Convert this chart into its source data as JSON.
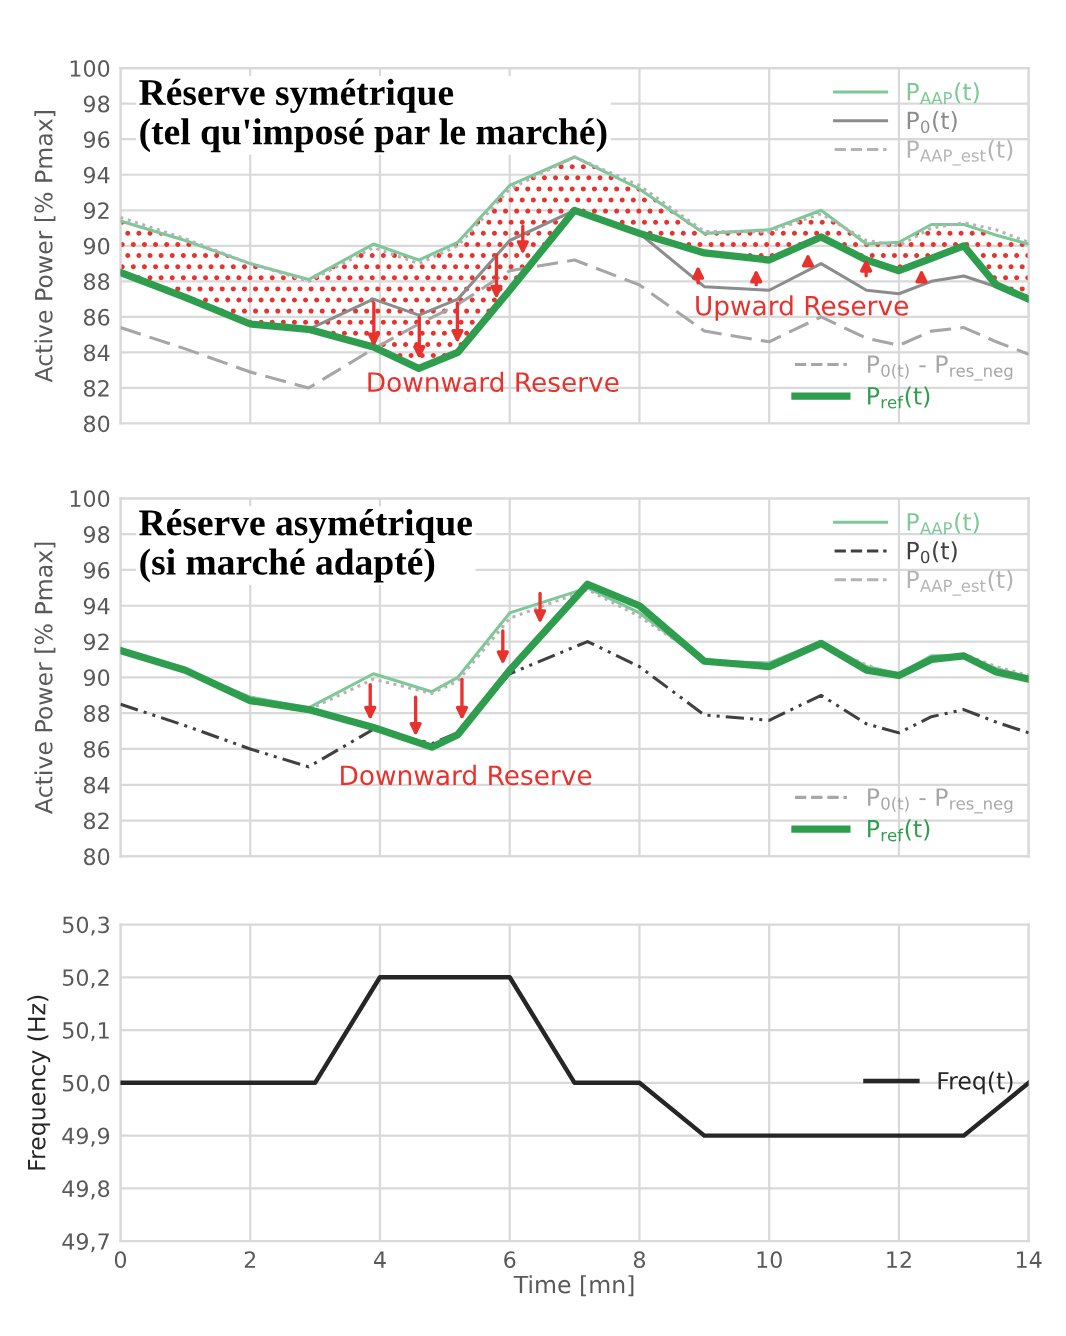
{
  "chart_data": [
    {
      "type": "line",
      "title": "Réserve symétrique\n(tel qu'imposé par le marché)",
      "ylabel": "Active Power [% Pmax]",
      "xlim": [
        0,
        14
      ],
      "xticks": [
        0,
        2,
        4,
        6,
        8,
        10,
        12,
        14
      ],
      "ylim": [
        80,
        100
      ],
      "yticks": [
        80,
        82,
        84,
        86,
        88,
        90,
        92,
        94,
        96,
        98,
        100
      ],
      "grid": true,
      "tick_labels": "y",
      "legend": "right",
      "x": [
        0,
        1,
        2,
        2.9,
        3.9,
        4.6,
        5.2,
        6,
        7,
        8,
        9,
        10,
        10.8,
        11.5,
        12,
        12.5,
        13,
        13.5,
        14
      ],
      "series": [
        {
          "name": "P$_{AAP}$(t)",
          "color": "#7cc896",
          "line_style": "solid",
          "values": [
            91.4,
            90.3,
            89.0,
            88.1,
            90.1,
            89.2,
            90.2,
            93.4,
            95.0,
            93.2,
            90.7,
            90.9,
            92.0,
            90.1,
            90.2,
            91.2,
            91.2,
            90.6,
            90.1
          ]
        },
        {
          "name": "P$_{0}$(t)",
          "color": "#8c8c8c",
          "line_style": "solid",
          "values": [
            88.5,
            87.1,
            85.6,
            85.3,
            87.0,
            86.1,
            87.0,
            90.3,
            92.0,
            90.7,
            87.7,
            87.5,
            89.0,
            87.5,
            87.3,
            88.0,
            88.3,
            87.7,
            87.0
          ]
        },
        {
          "name": "P$_{AAP_est}$(t)",
          "color": "#b4b4b4",
          "line_style": "dotted",
          "values": [
            91.6,
            90.4,
            89.0,
            88.0,
            89.9,
            89.0,
            90.0,
            93.2,
            95.0,
            93.4,
            90.8,
            90.8,
            91.8,
            90.3,
            90.0,
            91.0,
            91.3,
            90.9,
            90.2
          ]
        },
        {
          "name": "P$_{0(t)}$ - P$_{res_neg}$",
          "color": "#a6a6a6",
          "line_style": "dashed",
          "values": [
            85.4,
            84.2,
            82.9,
            82.0,
            84.2,
            85.6,
            86.7,
            88.6,
            89.2,
            87.8,
            85.2,
            84.6,
            86.0,
            84.8,
            84.4,
            85.2,
            85.4,
            84.6,
            83.9
          ]
        },
        {
          "name": "P$_{ref}$(t)",
          "color": "#2e9e4e",
          "line_style": "solid",
          "values": [
            88.5,
            87.1,
            85.6,
            85.3,
            84.3,
            83.1,
            84.0,
            87.5,
            92.0,
            90.7,
            89.6,
            89.2,
            90.5,
            89.2,
            88.6,
            89.3,
            90.0,
            87.8,
            87.0
          ],
          "lower": [
            88.5,
            87.1,
            85.6,
            85.3,
            84.3,
            83.1,
            84.0,
            87.5,
            92.0,
            90.7,
            89.6,
            89.2,
            90.5,
            89.2,
            88.6,
            89.3,
            90.0,
            87.8,
            87.0
          ],
          "upper": [
            91.4,
            90.3,
            89.0,
            88.1,
            90.1,
            89.2,
            90.2,
            93.4,
            95.0,
            93.2,
            90.7,
            90.9,
            92.0,
            90.1,
            90.2,
            91.2,
            91.2,
            90.6,
            90.1
          ]
        }
      ],
      "annotations": [
        "Downward Reserve",
        "Upward Reserve"
      ]
    },
    {
      "type": "line",
      "title": "Réserve asymétrique\n(si marché adapté)",
      "ylabel": "Active Power [% Pmax]",
      "xlim": [
        0,
        14
      ],
      "xticks": [
        0,
        2,
        4,
        6,
        8,
        10,
        12,
        14
      ],
      "ylim": [
        80,
        100
      ],
      "yticks": [
        80,
        82,
        84,
        86,
        88,
        90,
        92,
        94,
        96,
        98,
        100
      ],
      "grid": true,
      "tick_labels": "y",
      "legend": "right",
      "x": [
        0,
        1,
        2,
        2.9,
        3.9,
        4.8,
        5.2,
        6,
        7.2,
        8,
        9,
        10,
        10.8,
        11.5,
        12,
        12.5,
        13,
        13.5,
        14
      ],
      "series": [
        {
          "name": "P$_{AAP}$(t)",
          "color": "#7cc896",
          "line_style": "solid",
          "values": [
            91.5,
            90.4,
            88.9,
            88.3,
            90.2,
            89.2,
            90.0,
            93.6,
            95.0,
            93.6,
            90.9,
            90.8,
            92.0,
            90.6,
            90.2,
            91.2,
            91.2,
            90.5,
            90.0
          ]
        },
        {
          "name": "P$_{0}$(t)",
          "color": "#404040",
          "line_style": "dashdot",
          "values": [
            88.5,
            87.3,
            86.0,
            85.0,
            87.1,
            86.3,
            86.9,
            90.2,
            92.0,
            90.6,
            87.9,
            87.6,
            89.0,
            87.4,
            86.9,
            87.8,
            88.2,
            87.5,
            86.9
          ]
        },
        {
          "name": "P$_{AAP_est}$(t)",
          "color": "#b4b4b4",
          "line_style": "dotted",
          "values": [
            91.5,
            90.4,
            88.8,
            88.2,
            89.9,
            89.1,
            89.8,
            93.3,
            94.9,
            93.4,
            91.0,
            90.7,
            91.8,
            90.7,
            90.0,
            91.0,
            91.3,
            90.6,
            90.1
          ]
        },
        {
          "name": "P$_{0(t)}$ - P$_{res_neg}$",
          "color": "#a6a6a6",
          "line_style": "dashed",
          "values": [
            null,
            null,
            null,
            null,
            null,
            null,
            null,
            null,
            null,
            null,
            null,
            null,
            null,
            null,
            null,
            null,
            null,
            null,
            null
          ]
        },
        {
          "name": "P$_{ref}$(t)",
          "color": "#2e9e4e",
          "line_style": "solid",
          "values": [
            91.5,
            90.4,
            88.7,
            88.2,
            87.2,
            86.1,
            86.8,
            90.4,
            95.2,
            94.0,
            90.9,
            90.6,
            91.9,
            90.4,
            90.1,
            91.0,
            91.2,
            90.3,
            89.9
          ]
        }
      ],
      "annotations": [
        "Downward Reserve"
      ]
    },
    {
      "type": "line",
      "xlabel": "Time [mn]",
      "ylabel": "Frequency (Hz)",
      "xlim": [
        0,
        14
      ],
      "xticks": [
        0,
        2,
        4,
        6,
        8,
        10,
        12,
        14
      ],
      "ylim": [
        49.7,
        50.3
      ],
      "yticks": [
        {
          "value": 49.7,
          "label": "49,7"
        },
        {
          "value": 49.8,
          "label": "49,8"
        },
        {
          "value": 49.9,
          "label": "49,9"
        },
        {
          "value": 50.0,
          "label": "50,0"
        },
        {
          "value": 50.1,
          "label": "50,1"
        },
        {
          "value": 50.2,
          "label": "50,2"
        },
        {
          "value": 50.3,
          "label": "50,3"
        }
      ],
      "grid": true,
      "legend": "right",
      "x": [
        0,
        3,
        4,
        6,
        7,
        8,
        9,
        13,
        14
      ],
      "series": [
        {
          "name": "Freq(t)",
          "color": "#262626",
          "line_style": "solid",
          "values": [
            50.0,
            50.0,
            50.2,
            50.2,
            50.0,
            50.0,
            49.9,
            49.9,
            50.0
          ]
        }
      ]
    }
  ]
}
